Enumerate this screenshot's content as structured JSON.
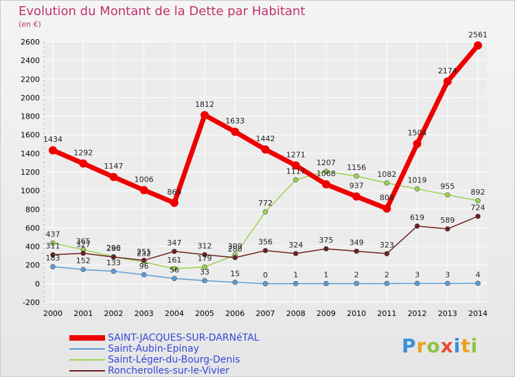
{
  "colors": {
    "title": "#c0336b",
    "background": "#ececec",
    "grid": "#ffffff",
    "axis_text": "#000000",
    "legend_text": "#3347d6"
  },
  "logo": {
    "letters": [
      "P",
      "r",
      "o",
      "x",
      "i",
      "t",
      "i"
    ],
    "colors": [
      "#3a8fd8",
      "#e8a21b",
      "#8cc63f",
      "#e84c3d",
      "#3a8fd8",
      "#e8a21b",
      "#8cc63f"
    ]
  },
  "chart_data": {
    "type": "line",
    "title": "Evolution du Montant de la Dette par Habitant",
    "subtitle": "(en €)",
    "x": [
      "2000",
      "2001",
      "2002",
      "2003",
      "2004",
      "2005",
      "2006",
      "2007",
      "2008",
      "2009",
      "2010",
      "2011",
      "2012",
      "2013",
      "2014"
    ],
    "ylim": [
      -200,
      2600
    ],
    "yticks": [
      "-200",
      "0",
      "200",
      "400",
      "600",
      "800",
      "1000",
      "1200",
      "1400",
      "1600",
      "1800",
      "2000",
      "2200",
      "2400",
      "2600"
    ],
    "grid": true,
    "legend_position": "bottom-left",
    "series": [
      {
        "name": "SAINT-JACQUES-SUR-DARNéTAL",
        "color": "#ee0000",
        "values": [
          1434,
          1292,
          1147,
          1006,
          869,
          1812,
          1633,
          1442,
          1271,
          1068,
          937,
          808,
          1504,
          2174,
          2561
        ]
      },
      {
        "name": "Saint-Aubin-Epinay",
        "color": "#5b9bd5",
        "values": [
          183,
          152,
          133,
          96,
          56,
          33,
          15,
          0,
          1,
          1,
          2,
          2,
          3,
          3,
          4
        ]
      },
      {
        "name": "Saint-Léger-du-Bourg-Denis",
        "color": "#9ad14b",
        "values": [
          437,
          365,
          290,
          232,
          161,
          179,
          309,
          772,
          1117,
          1207,
          1156,
          1082,
          1019,
          955,
          892
        ]
      },
      {
        "name": "Roncherolles-sur-le-Vivier",
        "color": "#6b1f1f",
        "values": [
          311,
          327,
          286,
          251,
          347,
          312,
          280,
          356,
          324,
          375,
          349,
          323,
          619,
          589,
          724
        ]
      }
    ]
  }
}
